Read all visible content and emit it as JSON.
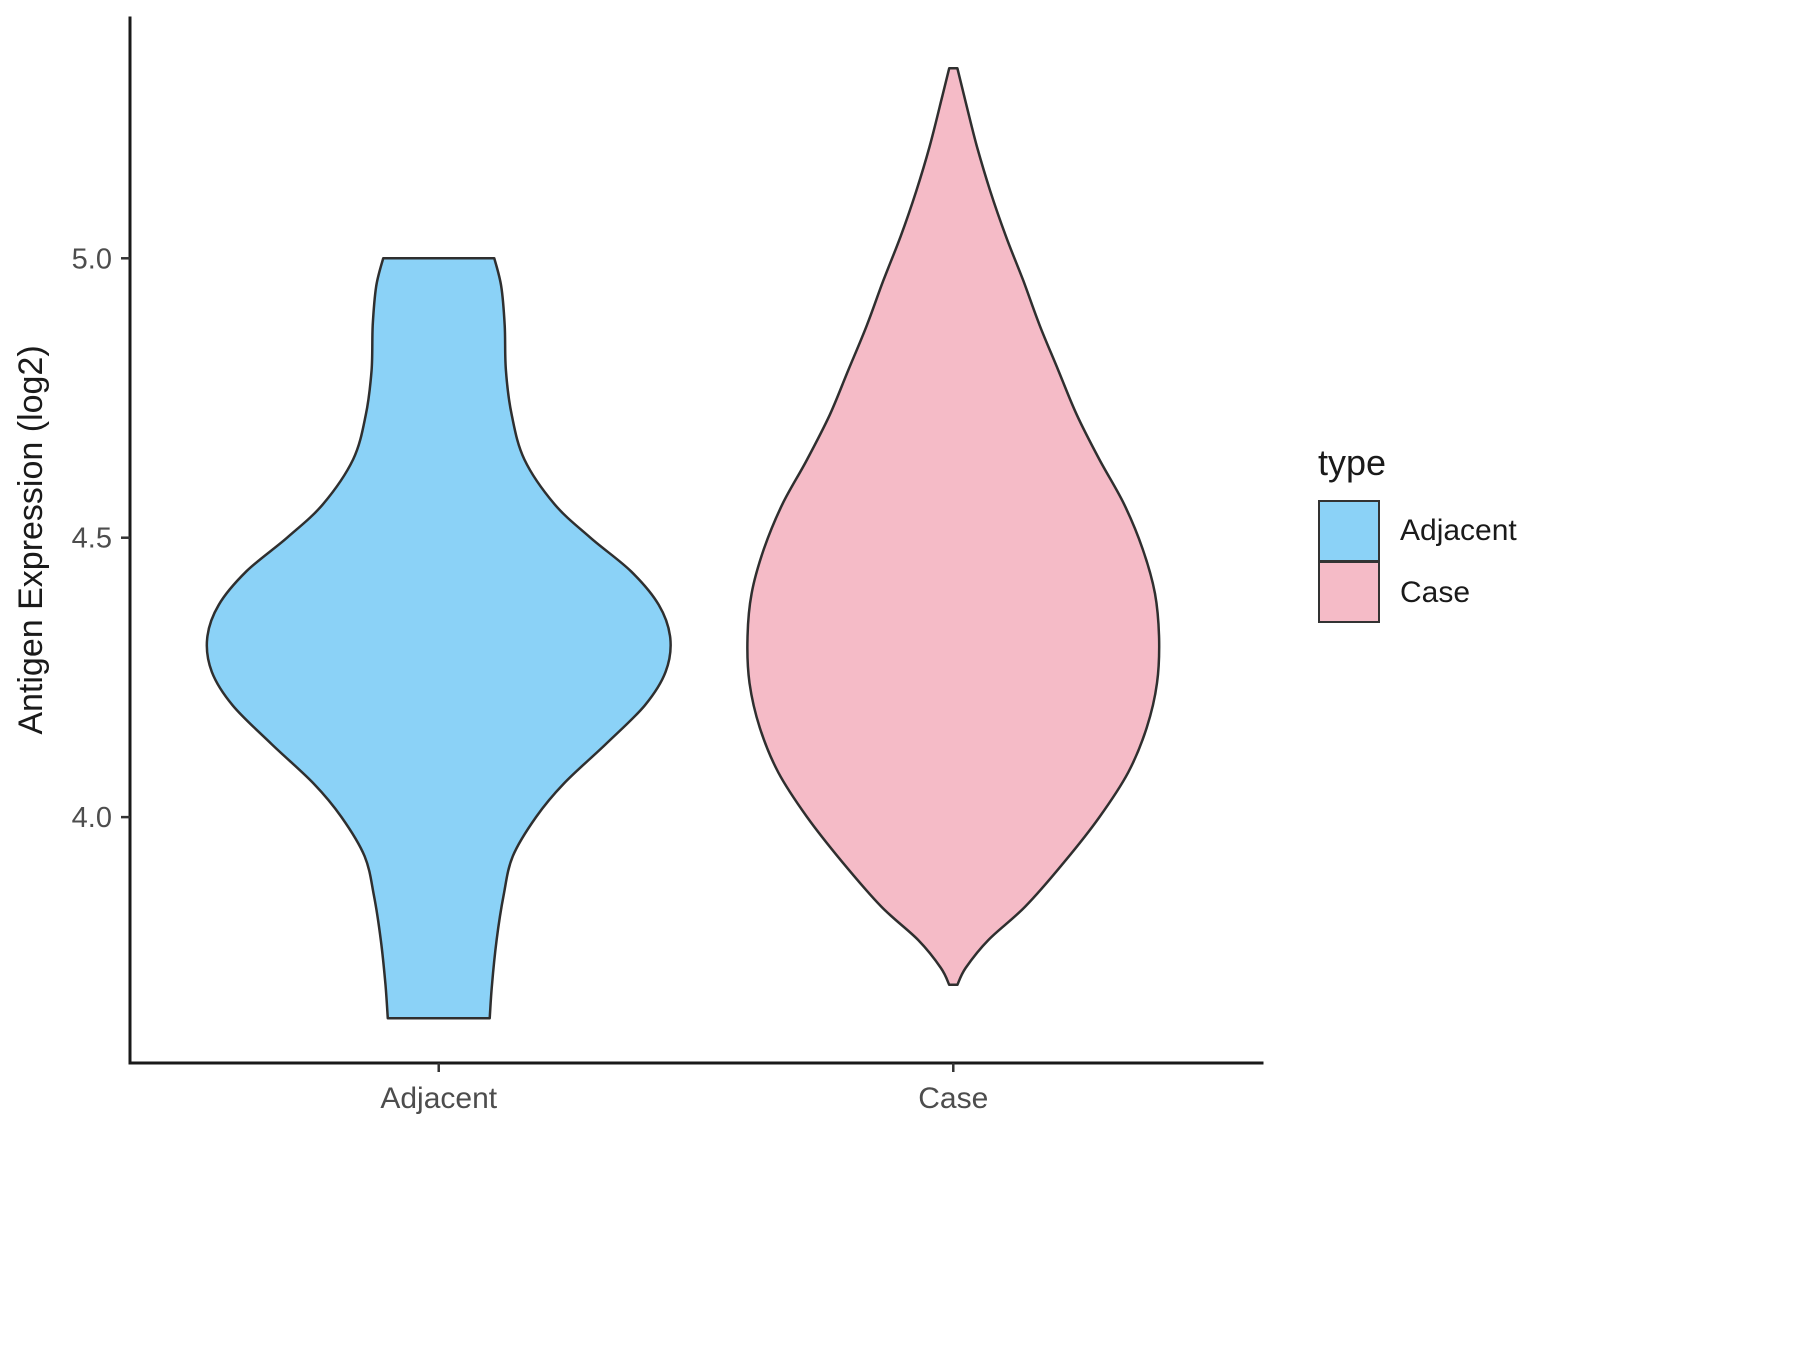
{
  "chart_data": {
    "type": "violin",
    "title": "",
    "xlabel": "",
    "ylabel": "Antigen Expression (log2)",
    "categories": [
      "Adjacent",
      "Case"
    ],
    "ylim": [
      3.56,
      5.43
    ],
    "yticks": [
      {
        "v": 4.0,
        "label": "4.0"
      },
      {
        "v": 4.5,
        "label": "4.5"
      },
      {
        "v": 5.0,
        "label": "5.0"
      }
    ],
    "grid": false,
    "legend": {
      "title": "type",
      "position": "right",
      "entries": [
        {
          "label": "Adjacent",
          "color": "#8BD2F7"
        },
        {
          "label": "Case",
          "color": "#F5BBC7"
        }
      ]
    },
    "series": [
      {
        "name": "Adjacent",
        "fill": "#8BD2F7",
        "outline": "#2f2f2f",
        "halfwidth_frac": 0.45,
        "profile": [
          [
            5.0,
            0.24
          ],
          [
            4.95,
            0.27
          ],
          [
            4.88,
            0.285
          ],
          [
            4.8,
            0.29
          ],
          [
            4.72,
            0.315
          ],
          [
            4.64,
            0.37
          ],
          [
            4.56,
            0.5
          ],
          [
            4.5,
            0.655
          ],
          [
            4.44,
            0.83
          ],
          [
            4.38,
            0.95
          ],
          [
            4.32,
            1.0
          ],
          [
            4.26,
            0.98
          ],
          [
            4.2,
            0.89
          ],
          [
            4.13,
            0.72
          ],
          [
            4.06,
            0.54
          ],
          [
            4.0,
            0.42
          ],
          [
            3.93,
            0.32
          ],
          [
            3.86,
            0.28
          ],
          [
            3.78,
            0.25
          ],
          [
            3.7,
            0.23
          ],
          [
            3.64,
            0.22
          ]
        ]
      },
      {
        "name": "Case",
        "fill": "#F5BBC7",
        "outline": "#2f2f2f",
        "halfwidth_frac": 0.4,
        "profile": [
          [
            5.34,
            0.02
          ],
          [
            5.28,
            0.06
          ],
          [
            5.2,
            0.115
          ],
          [
            5.12,
            0.18
          ],
          [
            5.04,
            0.255
          ],
          [
            4.96,
            0.34
          ],
          [
            4.88,
            0.42
          ],
          [
            4.8,
            0.51
          ],
          [
            4.72,
            0.6
          ],
          [
            4.64,
            0.71
          ],
          [
            4.56,
            0.83
          ],
          [
            4.48,
            0.92
          ],
          [
            4.4,
            0.98
          ],
          [
            4.32,
            1.0
          ],
          [
            4.24,
            0.99
          ],
          [
            4.16,
            0.94
          ],
          [
            4.08,
            0.85
          ],
          [
            4.0,
            0.71
          ],
          [
            3.92,
            0.54
          ],
          [
            3.84,
            0.35
          ],
          [
            3.78,
            0.17
          ],
          [
            3.73,
            0.06
          ],
          [
            3.7,
            0.02
          ]
        ]
      }
    ]
  }
}
